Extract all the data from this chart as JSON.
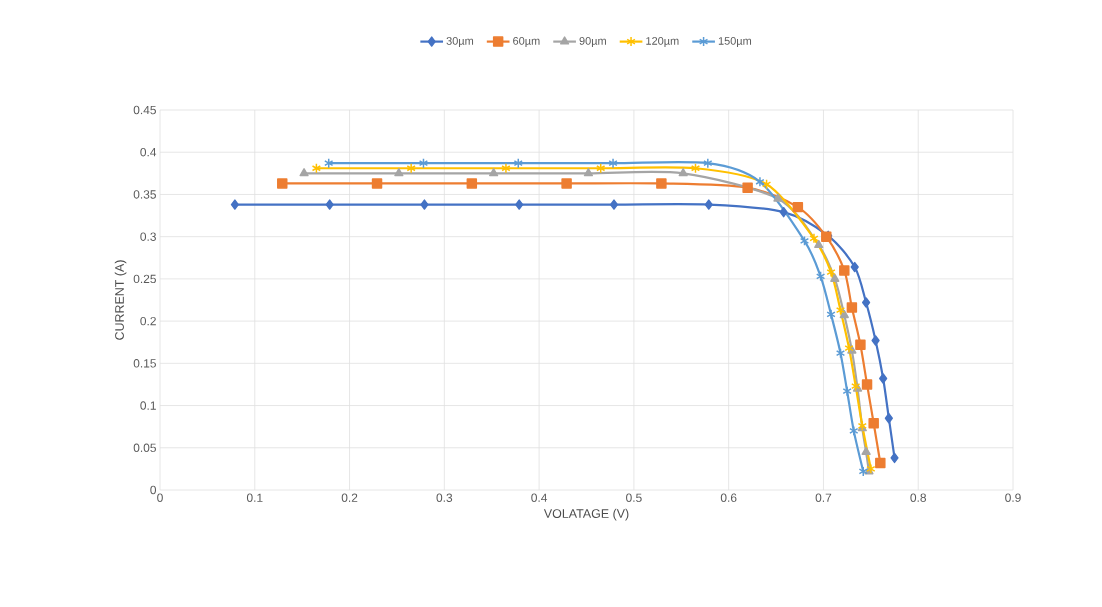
{
  "chart_data": {
    "type": "line",
    "xlabel": "VOLATAGE (V)",
    "ylabel": "CURRENT (A)",
    "xlim": [
      0,
      0.9
    ],
    "ylim": [
      0,
      0.45
    ],
    "xticks": [
      0,
      0.1,
      0.2,
      0.3,
      0.4,
      0.5,
      0.6,
      0.7,
      0.8,
      0.9
    ],
    "yticks": [
      0,
      0.05,
      0.1,
      0.15,
      0.2,
      0.25,
      0.3,
      0.35,
      0.4,
      0.45
    ],
    "grid": true,
    "legend": "top",
    "line_style": "solid",
    "series": [
      {
        "name": "30µm",
        "color": "#4472c4",
        "marker": "diamond",
        "x": [
          0.079,
          0.179,
          0.279,
          0.379,
          0.479,
          0.579,
          0.658,
          0.705,
          0.733,
          0.745,
          0.755,
          0.763,
          0.769,
          0.775
        ],
        "values": [
          0.338,
          0.338,
          0.338,
          0.338,
          0.338,
          0.338,
          0.329,
          0.301,
          0.264,
          0.222,
          0.177,
          0.132,
          0.085,
          0.038
        ]
      },
      {
        "name": "60µm",
        "color": "#ed7d31",
        "marker": "square",
        "x": [
          0.129,
          0.229,
          0.329,
          0.429,
          0.529,
          0.62,
          0.673,
          0.703,
          0.722,
          0.73,
          0.739,
          0.746,
          0.753,
          0.76
        ],
        "values": [
          0.363,
          0.363,
          0.363,
          0.363,
          0.363,
          0.358,
          0.335,
          0.3,
          0.26,
          0.216,
          0.172,
          0.125,
          0.079,
          0.032
        ]
      },
      {
        "name": "90µm",
        "color": "#a5a5a5",
        "marker": "triangle",
        "x": [
          0.152,
          0.252,
          0.352,
          0.452,
          0.552,
          0.652,
          0.695,
          0.712,
          0.722,
          0.73,
          0.736,
          0.741,
          0.745,
          0.748
        ],
        "values": [
          0.375,
          0.375,
          0.375,
          0.375,
          0.375,
          0.345,
          0.29,
          0.25,
          0.207,
          0.165,
          0.12,
          0.073,
          0.045,
          0.022
        ]
      },
      {
        "name": "120µm",
        "color": "#ffc000",
        "marker": "cross",
        "x": [
          0.165,
          0.265,
          0.365,
          0.465,
          0.565,
          0.64,
          0.69,
          0.708,
          0.718,
          0.727,
          0.734,
          0.741,
          0.75
        ],
        "values": [
          0.381,
          0.381,
          0.381,
          0.381,
          0.381,
          0.362,
          0.298,
          0.258,
          0.213,
          0.168,
          0.123,
          0.076,
          0.025
        ]
      },
      {
        "name": "150µm",
        "color": "#5b9bd5",
        "marker": "cross",
        "x": [
          0.178,
          0.278,
          0.378,
          0.478,
          0.578,
          0.633,
          0.68,
          0.697,
          0.708,
          0.718,
          0.725,
          0.732,
          0.742
        ],
        "values": [
          0.387,
          0.387,
          0.387,
          0.387,
          0.387,
          0.365,
          0.295,
          0.253,
          0.208,
          0.162,
          0.117,
          0.07,
          0.022
        ]
      }
    ]
  }
}
